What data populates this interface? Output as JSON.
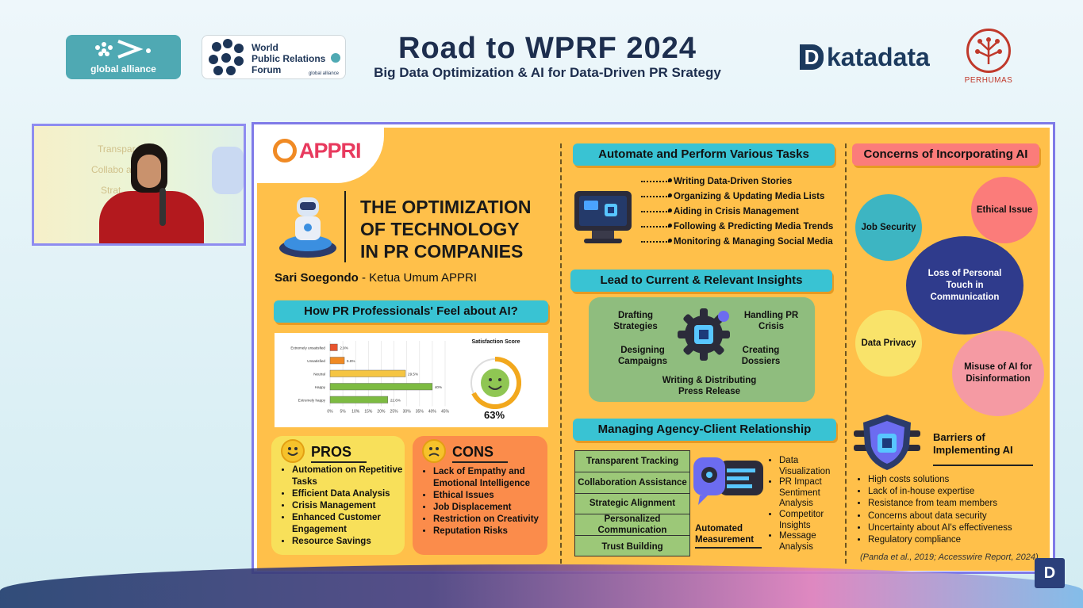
{
  "header": {
    "title": "Road to WPRF 2024",
    "subtitle": "Big Data Optimization & AI for Data-Driven PR Srategy",
    "logo_global_alliance": "global alliance",
    "logo_wprf_lines": [
      "World",
      "Public Relations",
      "Forum"
    ],
    "logo_wprf_small": "global alliance",
    "logo_katadata": "katadata",
    "logo_katadata_mark": "D",
    "logo_perhumas": "PERHUMAS"
  },
  "slide": {
    "logo": "APPRI",
    "title_lines": [
      "THE OPTIMIZATION",
      "OF TECHNOLOGY",
      "IN PR COMPANIES"
    ],
    "author_name": "Sari Soegondo",
    "author_role": " - Ketua Umum APPRI",
    "feel_heading": "How PR Professionals' Feel about AI?",
    "satisfaction_label": "Satisfaction Score",
    "satisfaction_value": "63%",
    "pros": {
      "heading": "PROS",
      "items": [
        "Automation on Repetitive Tasks",
        "Efficient Data Analysis",
        "Crisis Management",
        "Enhanced Customer Engagement",
        "Resource Savings"
      ]
    },
    "cons": {
      "heading": "CONS",
      "items": [
        "Lack of Empathy and Emotional Intelligence",
        "Ethical Issues",
        "Job Displacement",
        "Restriction on Creativity",
        "Reputation Risks"
      ]
    },
    "automate": {
      "heading": "Automate and Perform Various Tasks",
      "items": [
        "Writing Data-Driven Stories",
        "Organizing & Updating Media Lists",
        "Aiding in Crisis Management",
        "Following & Predicting Media Trends",
        "Monitoring & Managing Social Media"
      ]
    },
    "insights": {
      "heading": "Lead to Current & Relevant Insights",
      "items": [
        "Drafting Strategies",
        "Handling PR Crisis",
        "Designing Campaigns",
        "Creating Dossiers",
        "Writing & Distributing Press Release"
      ]
    },
    "agency": {
      "heading": "Managing Agency-Client Relationship",
      "table": [
        "Transparent Tracking",
        "Collaboration Assistance",
        "Strategic Alignment",
        "Personalized Communication",
        "Trust Building"
      ],
      "measurement_label": "Automated Measurement",
      "measurement_items": [
        "Data Visualization",
        "PR Impact Sentiment Analysis",
        "Competitor Insights",
        "Message Analysis"
      ]
    },
    "concerns": {
      "heading": "Concerns of Incorporating AI",
      "bubbles": [
        "Job Security",
        "Ethical Issue",
        "Loss of Personal Touch in Communication",
        "Data Privacy",
        "Misuse of AI for Disinformation"
      ]
    },
    "barriers": {
      "heading": "Barriers of Implementing AI",
      "items": [
        "High costs solutions",
        "Lack of in-house expertise",
        "Resistance from team members",
        "Concerns about data security",
        "Uncertainty about AI's effectiveness",
        "Regulatory compliance"
      ]
    },
    "citation": "(Panda et al., 2019; Accesswire Report, 2024)"
  },
  "chart_data": {
    "type": "bar",
    "orientation": "horizontal",
    "categories": [
      "Extremely unsatisfied",
      "Unsatisfied",
      "Neutral",
      "Happy",
      "Extremely happy"
    ],
    "values": [
      2.9,
      5.6,
      29.5,
      40,
      22.6
    ],
    "value_labels": [
      "2.9%",
      "5.6%",
      "29.5%",
      "40%",
      "22.6%"
    ],
    "xticks": [
      "0%",
      "5%",
      "10%",
      "15%",
      "20%",
      "25%",
      "30%",
      "35%",
      "40%",
      "45%"
    ],
    "xlim": [
      0,
      45
    ],
    "bar_colors": [
      "#e8542f",
      "#f08a24",
      "#f5c542",
      "#7dbb42",
      "#7dbb42"
    ],
    "grid": true
  },
  "badge": "D",
  "colors": {
    "accent_cyan": "#39c3d3",
    "slide_bg": "#ffc04a",
    "frame": "#7f7ae8"
  }
}
